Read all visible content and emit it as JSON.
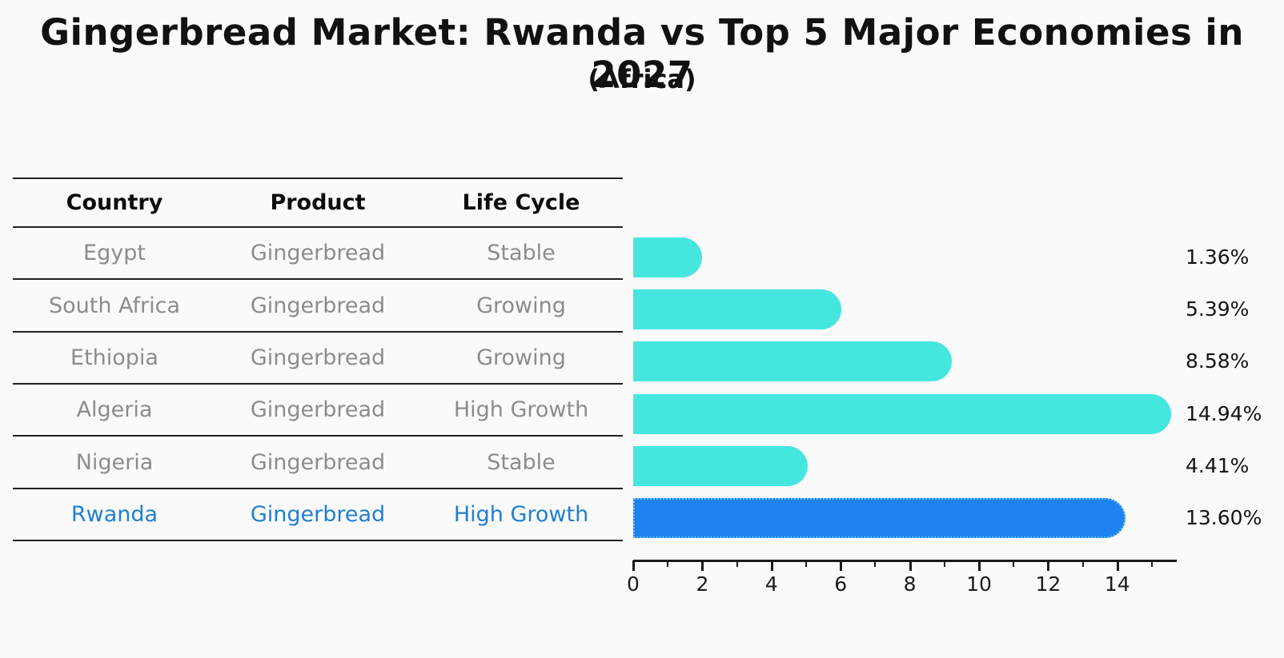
{
  "title": "Gingerbread Market: Rwanda vs Top 5 Major Economies in 2027",
  "subtitle": "(Africa)",
  "table": {
    "headers": [
      "Country",
      "Product",
      "Life Cycle"
    ],
    "rows": [
      {
        "country": "Egypt",
        "product": "Gingerbread",
        "life_cycle": "Stable",
        "highlight": false
      },
      {
        "country": "South Africa",
        "product": "Gingerbread",
        "life_cycle": "Growing",
        "highlight": false
      },
      {
        "country": "Ethiopia",
        "product": "Gingerbread",
        "life_cycle": "Growing",
        "highlight": false
      },
      {
        "country": "Algeria",
        "product": "Gingerbread",
        "life_cycle": "High Growth",
        "highlight": false
      },
      {
        "country": "Nigeria",
        "product": "Gingerbread",
        "life_cycle": "Stable",
        "highlight": false
      },
      {
        "country": "Rwanda",
        "product": "Gingerbread",
        "life_cycle": "High Growth",
        "highlight": true
      }
    ]
  },
  "chart_data": {
    "type": "bar",
    "orientation": "horizontal",
    "title": "Gingerbread Market: Rwanda vs Top 5 Major Economies in 2027",
    "subtitle": "(Africa)",
    "categories": [
      "Egypt",
      "South Africa",
      "Ethiopia",
      "Algeria",
      "Nigeria",
      "Rwanda"
    ],
    "values": [
      1.36,
      5.39,
      8.58,
      14.94,
      4.41,
      13.6
    ],
    "value_labels": [
      "1.36%",
      "5.39%",
      "8.58%",
      "14.94%",
      "4.41%",
      "13.60%"
    ],
    "highlight_category": "Rwanda",
    "xticks": [
      0,
      2,
      4,
      6,
      8,
      10,
      12,
      14
    ],
    "xlim": [
      0,
      15.7
    ],
    "grid": false,
    "legend": false,
    "colors": {
      "bar": "#45e6e0",
      "highlight_bar": "#1e82f0",
      "highlight_border": "#5fbff5",
      "row_text": "#8c8c8c",
      "highlight_text": "#1f7fd4",
      "heading_text": "#111111",
      "axis": "#1a1a1a"
    }
  }
}
